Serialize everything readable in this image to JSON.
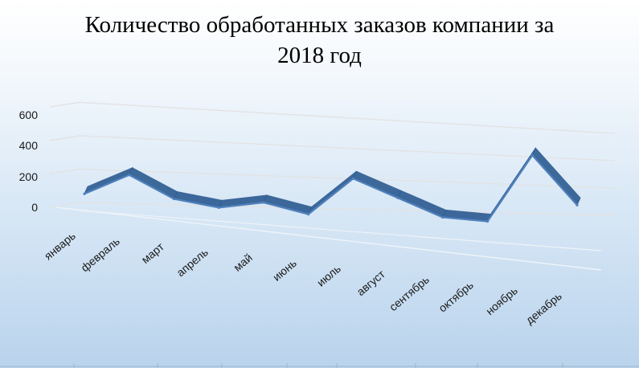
{
  "chart_data": {
    "type": "line",
    "title_line1": "Количество обработанных заказов компании за",
    "title_line2": "2018 год",
    "categories": [
      "январь",
      "февраль",
      "март",
      "апрель",
      "май",
      "июнь",
      "июль",
      "август",
      "сентябрь",
      "октябрь",
      "ноябрь",
      "декабрь"
    ],
    "values": [
      20,
      160,
      20,
      -20,
      30,
      -30,
      220,
      110,
      0,
      -10,
      440,
      130
    ],
    "yticks": [
      "600",
      "400",
      "200",
      "0"
    ],
    "ylim": [
      0,
      600
    ],
    "grid": true,
    "style": "3d-ribbon",
    "colors": {
      "line": "#4f81bd",
      "ribbon_dark": "#2f5d93",
      "grid": "#e2e2e2"
    }
  }
}
